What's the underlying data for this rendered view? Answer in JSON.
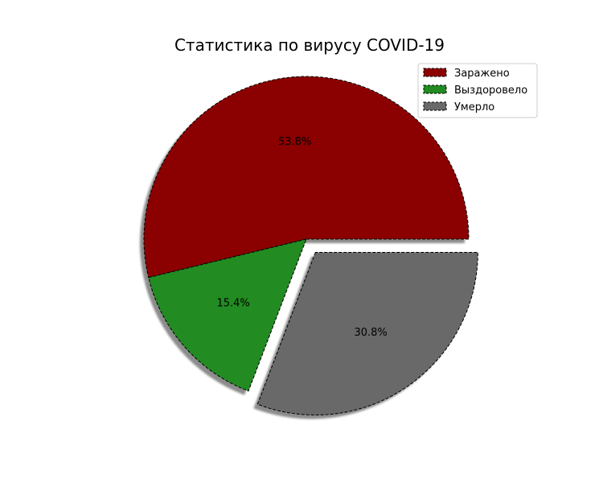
{
  "chart_data": {
    "type": "pie",
    "title": "Статистика по вирусу COVID-19",
    "categories": [
      "Заражено",
      "Выздоровело",
      "Умерло"
    ],
    "values": [
      53.8,
      15.4,
      30.8
    ],
    "value_labels": [
      "53.8%",
      "15.4%",
      "30.8%"
    ],
    "colors": [
      "#8b0000",
      "#228b22",
      "#696969"
    ],
    "exploded": [
      false,
      false,
      true
    ],
    "shadow": true,
    "edge_style": "dashed",
    "edge_color": "#000000",
    "legend": {
      "position": "top-right",
      "entries": [
        "Заражено",
        "Выздоровело",
        "Умерло"
      ]
    }
  }
}
